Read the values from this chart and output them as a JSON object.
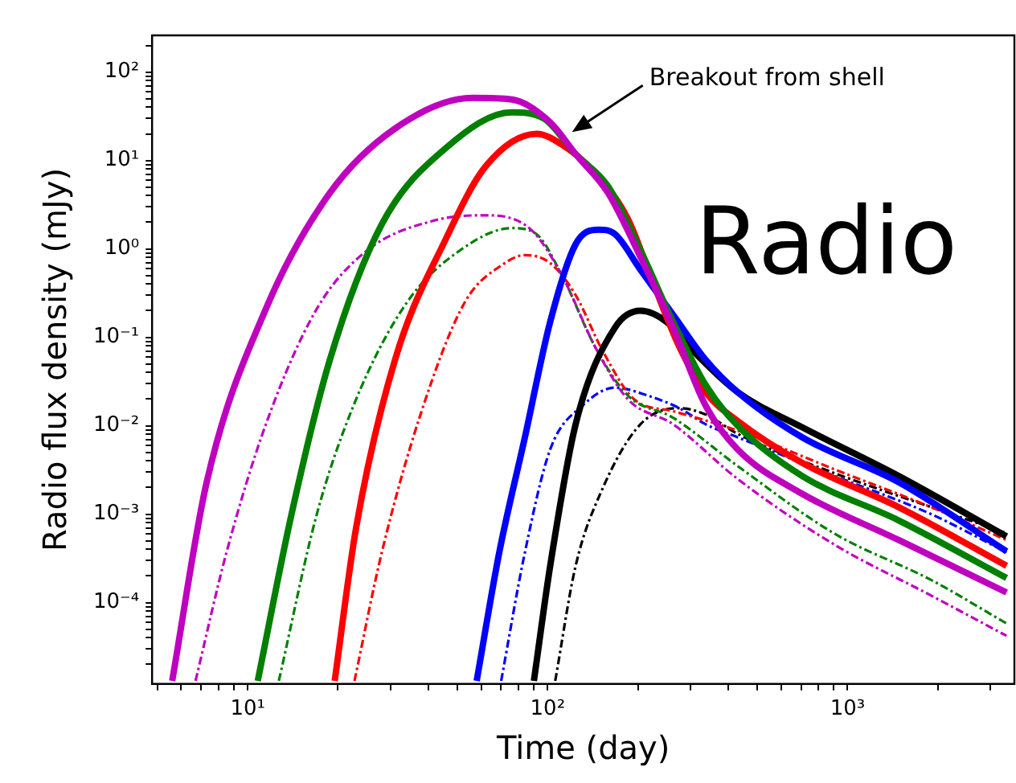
{
  "chart_data": {
    "type": "line",
    "xlabel": "Time (day)",
    "ylabel": "Radio flux density (mJy)",
    "log": "xy",
    "grid": false,
    "legend": false,
    "marker": "none",
    "xlim": [
      4.8,
      3600
    ],
    "ylim": [
      1.2e-05,
      260
    ],
    "xticks": [
      {
        "value": 5,
        "label": null
      },
      {
        "value": 6,
        "label": null
      },
      {
        "value": 7,
        "label": null
      },
      {
        "value": 8,
        "label": null
      },
      {
        "value": 9,
        "label": null
      },
      {
        "value": 10,
        "label": "10¹"
      },
      {
        "value": 20,
        "label": null
      },
      {
        "value": 30,
        "label": null
      },
      {
        "value": 40,
        "label": null
      },
      {
        "value": 50,
        "label": null
      },
      {
        "value": 60,
        "label": null
      },
      {
        "value": 70,
        "label": null
      },
      {
        "value": 80,
        "label": null
      },
      {
        "value": 90,
        "label": null
      },
      {
        "value": 100,
        "label": "10²"
      },
      {
        "value": 200,
        "label": null
      },
      {
        "value": 300,
        "label": null
      },
      {
        "value": 400,
        "label": null
      },
      {
        "value": 500,
        "label": null
      },
      {
        "value": 600,
        "label": null
      },
      {
        "value": 700,
        "label": null
      },
      {
        "value": 800,
        "label": null
      },
      {
        "value": 900,
        "label": null
      },
      {
        "value": 1000,
        "label": "10³"
      },
      {
        "value": 2000,
        "label": null
      },
      {
        "value": 3000,
        "label": null
      }
    ],
    "yticks": [
      {
        "value": 2e-05,
        "label": null
      },
      {
        "value": 3e-05,
        "label": null
      },
      {
        "value": 4e-05,
        "label": null
      },
      {
        "value": 5e-05,
        "label": null
      },
      {
        "value": 6e-05,
        "label": null
      },
      {
        "value": 7e-05,
        "label": null
      },
      {
        "value": 8e-05,
        "label": null
      },
      {
        "value": 9e-05,
        "label": null
      },
      {
        "value": 0.0001,
        "label": "10⁻⁴"
      },
      {
        "value": 0.0002,
        "label": null
      },
      {
        "value": 0.0003,
        "label": null
      },
      {
        "value": 0.0004,
        "label": null
      },
      {
        "value": 0.0005,
        "label": null
      },
      {
        "value": 0.0006,
        "label": null
      },
      {
        "value": 0.0007,
        "label": null
      },
      {
        "value": 0.0008,
        "label": null
      },
      {
        "value": 0.0009,
        "label": null
      },
      {
        "value": 0.001,
        "label": "10⁻³"
      },
      {
        "value": 0.002,
        "label": null
      },
      {
        "value": 0.003,
        "label": null
      },
      {
        "value": 0.004,
        "label": null
      },
      {
        "value": 0.005,
        "label": null
      },
      {
        "value": 0.006,
        "label": null
      },
      {
        "value": 0.007,
        "label": null
      },
      {
        "value": 0.008,
        "label": null
      },
      {
        "value": 0.009,
        "label": null
      },
      {
        "value": 0.01,
        "label": "10⁻²"
      },
      {
        "value": 0.02,
        "label": null
      },
      {
        "value": 0.03,
        "label": null
      },
      {
        "value": 0.04,
        "label": null
      },
      {
        "value": 0.05,
        "label": null
      },
      {
        "value": 0.06,
        "label": null
      },
      {
        "value": 0.07,
        "label": null
      },
      {
        "value": 0.08,
        "label": null
      },
      {
        "value": 0.09,
        "label": null
      },
      {
        "value": 0.1,
        "label": "10⁻¹"
      },
      {
        "value": 0.2,
        "label": null
      },
      {
        "value": 0.3,
        "label": null
      },
      {
        "value": 0.4,
        "label": null
      },
      {
        "value": 0.5,
        "label": null
      },
      {
        "value": 0.6,
        "label": null
      },
      {
        "value": 0.7,
        "label": null
      },
      {
        "value": 0.8,
        "label": null
      },
      {
        "value": 0.9,
        "label": null
      },
      {
        "value": 1,
        "label": "10⁰"
      },
      {
        "value": 2,
        "label": null
      },
      {
        "value": 3,
        "label": null
      },
      {
        "value": 4,
        "label": null
      },
      {
        "value": 5,
        "label": null
      },
      {
        "value": 6,
        "label": null
      },
      {
        "value": 7,
        "label": null
      },
      {
        "value": 8,
        "label": null
      },
      {
        "value": 9,
        "label": null
      },
      {
        "value": 10,
        "label": "10¹"
      },
      {
        "value": 20,
        "label": null
      },
      {
        "value": 30,
        "label": null
      },
      {
        "value": 40,
        "label": null
      },
      {
        "value": 50,
        "label": null
      },
      {
        "value": 60,
        "label": null
      },
      {
        "value": 70,
        "label": null
      },
      {
        "value": 80,
        "label": null
      },
      {
        "value": 90,
        "label": null
      },
      {
        "value": 100,
        "label": "10²"
      },
      {
        "value": 200,
        "label": null
      }
    ],
    "annotations": [
      "Breakout from shell",
      "Radio"
    ],
    "series": [
      {
        "color": "#bf00bf",
        "line_style": "solid",
        "x": [
          5.6,
          7.3,
          11.5,
          18.8,
          31,
          56,
          76,
          102,
          124,
          159,
          204,
          262,
          336,
          430,
          706,
          1480,
          3390
        ],
        "values": [
          1.3e-05,
          0.0023,
          0.21,
          4.3,
          23,
          51,
          49,
          27,
          11.8,
          4.3,
          0.81,
          0.13,
          0.017,
          0.0054,
          0.0017,
          0.00051,
          0.00013
        ]
      },
      {
        "color": "#007f00",
        "line_style": "solid",
        "x": [
          10.8,
          14,
          18.8,
          28,
          46,
          76,
          97,
          124,
          159,
          204,
          262,
          336,
          430,
          706,
          1480,
          3390
        ],
        "values": [
          1.3e-05,
          0.001,
          0.056,
          1.9,
          14,
          35,
          30,
          11.8,
          5.1,
          0.96,
          0.15,
          0.029,
          0.01,
          0.0027,
          0.00085,
          0.00019
        ]
      },
      {
        "color": "#ff0000",
        "line_style": "solid",
        "x": [
          19.5,
          23,
          31,
          46,
          62,
          92,
          112,
          144,
          185,
          225,
          275,
          336,
          430,
          706,
          1480,
          3390
        ],
        "values": [
          1.3e-05,
          0.00071,
          0.056,
          1.34,
          8.5,
          20,
          15,
          7.2,
          2.2,
          0.41,
          0.078,
          0.024,
          0.0113,
          0.0038,
          0.0012,
          0.00026
        ]
      },
      {
        "color": "#0000ff",
        "line_style": "solid",
        "x": [
          58,
          69,
          84,
          102,
          124,
          148,
          168,
          204,
          262,
          336,
          430,
          706,
          1480,
          3390
        ],
        "values": [
          1.3e-05,
          0.00037,
          0.0074,
          0.15,
          1.13,
          1.65,
          1.46,
          0.58,
          0.18,
          0.056,
          0.024,
          0.0074,
          0.0023,
          0.00038
        ]
      },
      {
        "color": "#000000",
        "line_style": "solid",
        "x": [
          90,
          102,
          124,
          168,
          204,
          249,
          303,
          430,
          706,
          1480,
          3390
        ],
        "values": [
          1.3e-05,
          0.00026,
          0.0104,
          0.13,
          0.2,
          0.15,
          0.072,
          0.024,
          0.0096,
          0.0027,
          0.00056
        ]
      },
      {
        "color": "#bf00bf",
        "line_style": "dashdot",
        "x": [
          6.7,
          8.5,
          11.5,
          17,
          25,
          42,
          62,
          88,
          112,
          144,
          185,
          262,
          430,
          906,
          1900,
          3390
        ],
        "values": [
          1.3e-05,
          0.00037,
          0.0104,
          0.21,
          0.96,
          2.1,
          2.4,
          1.65,
          0.49,
          0.078,
          0.02,
          0.0104,
          0.0025,
          0.00045,
          0.00012,
          4.2e-05
        ]
      },
      {
        "color": "#007f00",
        "line_style": "dashdot",
        "x": [
          12.7,
          17,
          23,
          34,
          51,
          76,
          92,
          112,
          144,
          185,
          262,
          430,
          906,
          1900,
          3390
        ],
        "values": [
          1.3e-05,
          0.001,
          0.02,
          0.25,
          0.96,
          1.72,
          1.46,
          0.49,
          0.078,
          0.022,
          0.0123,
          0.0035,
          0.0006,
          0.00018,
          5.8e-05
        ]
      },
      {
        "color": "#ff0000",
        "line_style": "dashdot",
        "x": [
          22.7,
          28,
          38,
          53,
          72,
          84,
          102,
          124,
          152,
          194,
          262,
          430,
          906,
          1900,
          3390
        ],
        "values": [
          1.3e-05,
          0.00037,
          0.0146,
          0.25,
          0.69,
          0.85,
          0.69,
          0.3,
          0.072,
          0.02,
          0.0146,
          0.0088,
          0.0032,
          0.0012,
          0.00051
        ]
      },
      {
        "color": "#0000ff",
        "line_style": "dashdot",
        "x": [
          70,
          84,
          102,
          131,
          168,
          215,
          275,
          336,
          430,
          906,
          1900,
          3390
        ],
        "values": [
          1.3e-05,
          0.00037,
          0.0054,
          0.017,
          0.027,
          0.022,
          0.0158,
          0.0104,
          0.0074,
          0.0027,
          0.001,
          0.00037
        ]
      },
      {
        "color": "#000000",
        "line_style": "dashdot",
        "x": [
          106,
          124,
          152,
          204,
          275,
          336,
          430,
          906,
          1900,
          3390
        ],
        "values": [
          1.3e-05,
          0.00026,
          0.0019,
          0.0104,
          0.0158,
          0.0134,
          0.0081,
          0.0029,
          0.0012,
          0.00061
        ]
      }
    ]
  }
}
